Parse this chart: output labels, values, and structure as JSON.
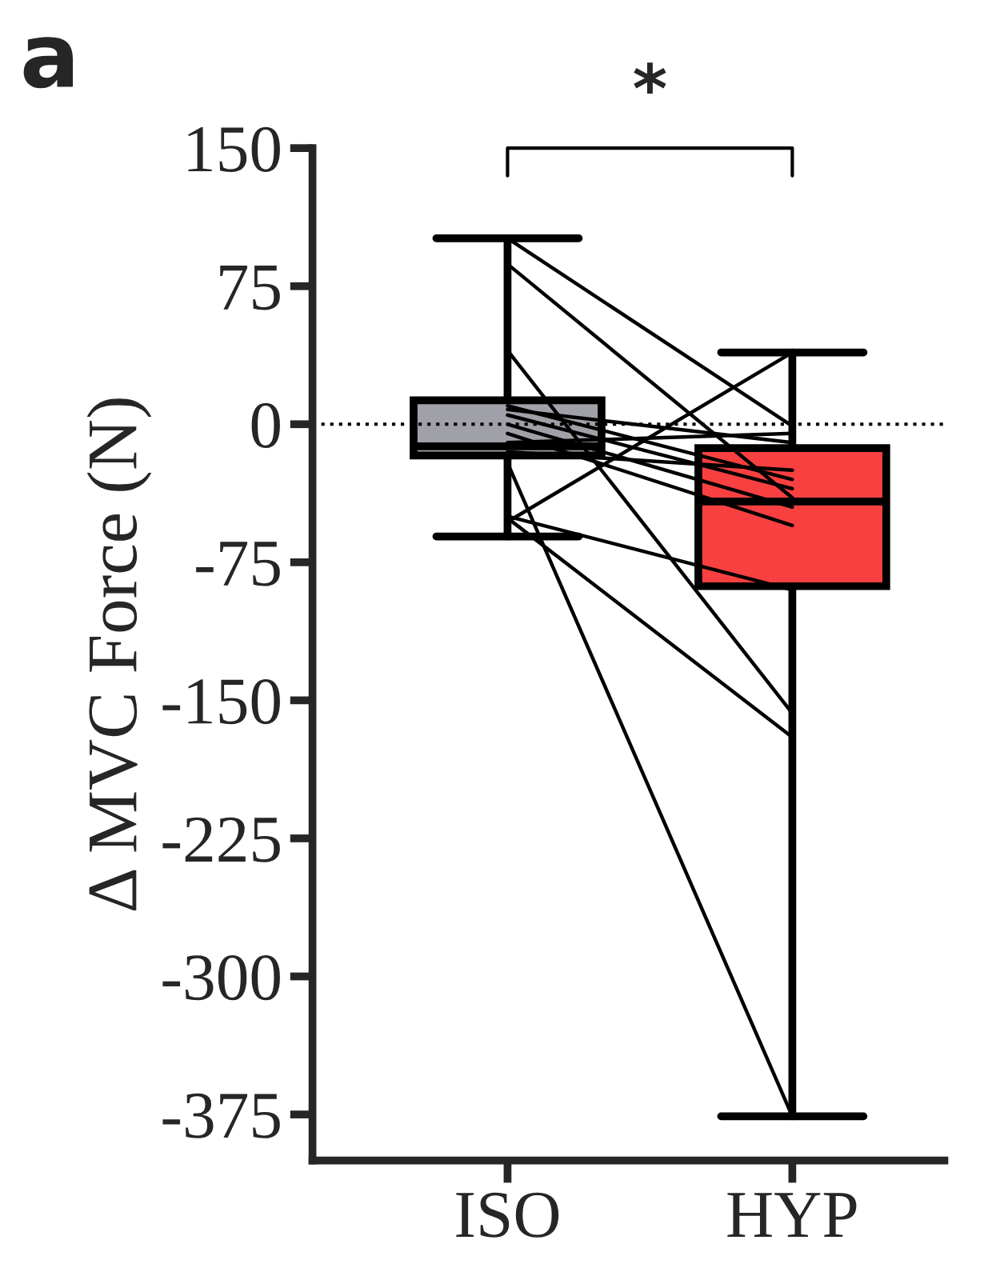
{
  "chart_data": {
    "type": "box",
    "title": "a",
    "ylabel": "Δ MVC Force (N)",
    "categories": [
      "ISO",
      "HYP"
    ],
    "colors": [
      "#a0a0a8",
      "#f84040"
    ],
    "boxes": [
      {
        "low": -61,
        "q1": -17,
        "median": -12,
        "q3": 13,
        "high": 101
      },
      {
        "low": -376,
        "q1": -88,
        "median": -42,
        "q3": -13,
        "high": 39
      }
    ],
    "series": [
      {
        "type": "line",
        "x": [
          "ISO",
          "HYP"
        ],
        "values": [
          101,
          -1
        ],
        "color": "#000000"
      },
      {
        "type": "line",
        "x": [
          "ISO",
          "HYP"
        ],
        "values": [
          87,
          -40
        ],
        "color": "#000000"
      },
      {
        "type": "line",
        "x": [
          "ISO",
          "HYP"
        ],
        "values": [
          40,
          -157
        ],
        "color": "#000000"
      },
      {
        "type": "line",
        "x": [
          "ISO",
          "HYP"
        ],
        "values": [
          -21,
          -376
        ],
        "color": "#000000"
      },
      {
        "type": "line",
        "x": [
          "ISO",
          "HYP"
        ],
        "values": [
          -53,
          39
        ],
        "color": "#000000"
      },
      {
        "type": "line",
        "x": [
          "ISO",
          "HYP"
        ],
        "values": [
          -50,
          -90
        ],
        "color": "#000000"
      },
      {
        "type": "line",
        "x": [
          "ISO",
          "HYP"
        ],
        "values": [
          -51,
          -170
        ],
        "color": "#000000"
      },
      {
        "type": "line",
        "x": [
          "ISO",
          "HYP"
        ],
        "values": [
          10,
          -30
        ],
        "color": "#000000"
      },
      {
        "type": "line",
        "x": [
          "ISO",
          "HYP"
        ],
        "values": [
          5,
          -35
        ],
        "color": "#000000"
      },
      {
        "type": "line",
        "x": [
          "ISO",
          "HYP"
        ],
        "values": [
          0,
          -45
        ],
        "color": "#000000"
      },
      {
        "type": "line",
        "x": [
          "ISO",
          "HYP"
        ],
        "values": [
          -5,
          -55
        ],
        "color": "#000000"
      },
      {
        "type": "line",
        "x": [
          "ISO",
          "HYP"
        ],
        "values": [
          -10,
          -5
        ],
        "color": "#000000"
      },
      {
        "type": "line",
        "x": [
          "ISO",
          "HYP"
        ],
        "values": [
          -15,
          -25
        ],
        "color": "#000000"
      },
      {
        "type": "line",
        "x": [
          "ISO",
          "HYP"
        ],
        "values": [
          8,
          -10
        ],
        "color": "#000000"
      }
    ],
    "ylim": [
      -400,
      150
    ],
    "yticks": [
      150,
      75,
      0,
      -75,
      -150,
      -225,
      -300,
      -375
    ],
    "ref_lines": [
      {
        "axis": "y",
        "value": 0,
        "color": "#000000",
        "line_style": "dotted"
      }
    ],
    "annotations": [
      "*"
    ],
    "marker": "none",
    "line_style": "solid",
    "grid": false,
    "legend": false
  }
}
